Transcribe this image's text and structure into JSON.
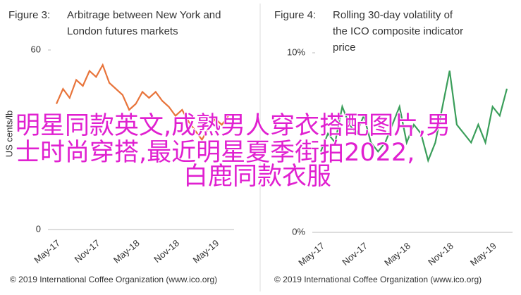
{
  "chart_data": [
    {
      "type": "line",
      "figure_label": "Figure 3:",
      "title": "Arbitrage between New York and London futures markets",
      "y_label": "US cents/lb",
      "categories": [
        "May-17",
        null,
        null,
        null,
        null,
        null,
        "Nov-17",
        null,
        null,
        null,
        null,
        null,
        "May-18",
        null,
        null,
        null,
        null,
        null,
        "Nov-18",
        null,
        null,
        null,
        null,
        null,
        "May-19",
        null,
        null
      ],
      "series": [
        {
          "color": "#e8743b",
          "values": [
            42,
            47,
            44,
            50,
            48,
            53,
            51,
            55,
            49,
            47,
            45,
            40,
            42,
            46,
            44,
            46,
            43,
            41,
            38,
            40,
            36,
            33,
            30,
            34,
            37,
            35,
            38
          ]
        }
      ],
      "ylim": [
        0,
        60
      ],
      "yticks": [
        0,
        60
      ],
      "source": "© 2019 International Coffee Organization (www.ico.org)"
    },
    {
      "type": "line",
      "figure_label": "Figure 4:",
      "title": "Rolling 30-day volatility of the ICO composite indicator price",
      "categories": [
        "May-17",
        null,
        null,
        null,
        null,
        null,
        "Nov-17",
        null,
        null,
        null,
        null,
        null,
        "May-18",
        null,
        null,
        null,
        null,
        null,
        "Nov-18",
        null,
        null,
        null,
        null,
        null,
        "May-19",
        null,
        null
      ],
      "series": [
        {
          "color": "#3a9e5a",
          "values": [
            4.5,
            5.5,
            5,
            7,
            6,
            5.5,
            6.5,
            5,
            4.5,
            5,
            6,
            7,
            5,
            6,
            5.5,
            4,
            5,
            7,
            9,
            6,
            5.5,
            5,
            6,
            5,
            7,
            6.5,
            8
          ]
        }
      ],
      "ylim": [
        0,
        10
      ],
      "yticks": [
        {
          "value": 0,
          "label": "0%"
        },
        {
          "value": 10,
          "label": "10%"
        }
      ],
      "source": "© 2019 International Coffee Organization (www.ico.org)"
    }
  ],
  "overlay": {
    "lines": [
      "明星同款英文,成熟男人穿衣搭配图片,男",
      "士时尚穿搭,最近明星夏季街拍2022,",
      "白鹿同款衣服"
    ]
  }
}
